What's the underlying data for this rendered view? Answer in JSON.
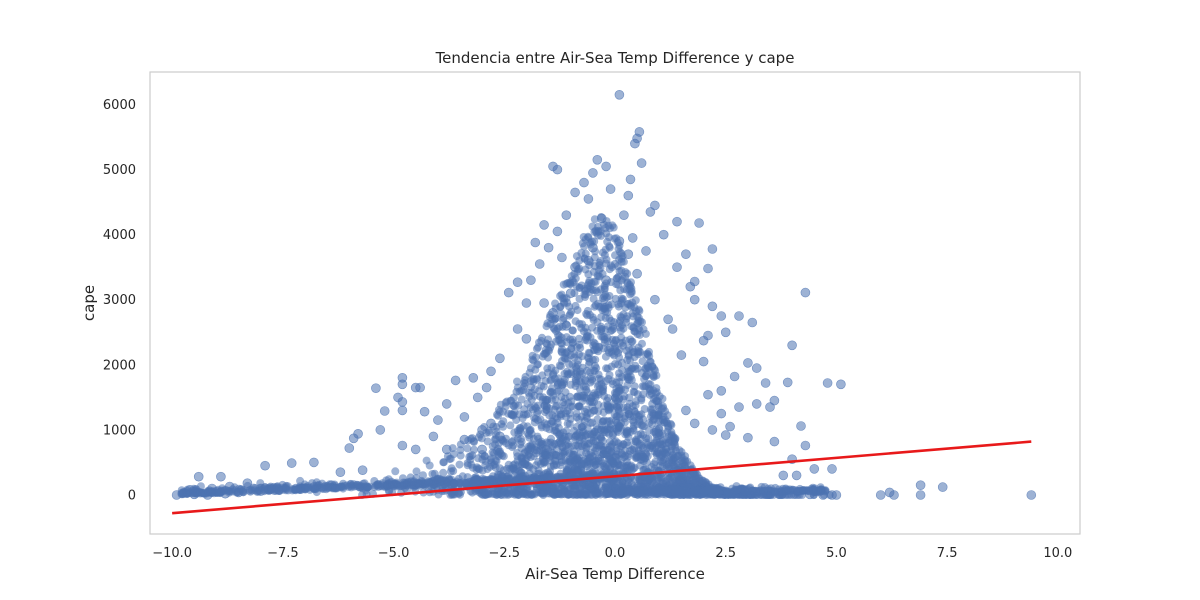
{
  "chart_data": {
    "type": "scatter",
    "title": "Tendencia entre Air-Sea Temp Difference y cape",
    "xlabel": "Air-Sea Temp Difference",
    "ylabel": "cape",
    "xlim": [
      -10.5,
      10.5
    ],
    "ylim": [
      -600,
      6500
    ],
    "xticks": [
      -10.0,
      -7.5,
      -5.0,
      -2.5,
      0.0,
      2.5,
      5.0,
      7.5,
      10.0
    ],
    "xtick_labels": [
      "−10.0",
      "−7.5",
      "−5.0",
      "−2.5",
      "0.0",
      "2.5",
      "5.0",
      "7.5",
      "10.0"
    ],
    "yticks": [
      0,
      1000,
      2000,
      3000,
      4000,
      5000,
      6000
    ],
    "ytick_labels": [
      "0",
      "1000",
      "2000",
      "3000",
      "4000",
      "5000",
      "6000"
    ],
    "grid": false,
    "series": [
      {
        "kind": "scatter",
        "color": "#4c72b0",
        "points": [
          [
            0.1,
            6150
          ],
          [
            0.55,
            5580
          ],
          [
            0.5,
            5480
          ],
          [
            0.45,
            5400
          ],
          [
            -1.4,
            5050
          ],
          [
            -1.3,
            5000
          ],
          [
            -0.4,
            5150
          ],
          [
            -0.2,
            5050
          ],
          [
            0.6,
            5100
          ],
          [
            -0.5,
            4950
          ],
          [
            0.35,
            4850
          ],
          [
            -0.7,
            4800
          ],
          [
            -0.9,
            4650
          ],
          [
            -0.1,
            4700
          ],
          [
            0.3,
            4600
          ],
          [
            -0.6,
            4550
          ],
          [
            0.9,
            4450
          ],
          [
            0.8,
            4350
          ],
          [
            -1.1,
            4300
          ],
          [
            0.2,
            4300
          ],
          [
            1.4,
            4200
          ],
          [
            1.9,
            4180
          ],
          [
            -1.6,
            4150
          ],
          [
            -0.3,
            4250
          ],
          [
            -1.3,
            4050
          ],
          [
            1.1,
            4000
          ],
          [
            0.4,
            3950
          ],
          [
            -1.8,
            3880
          ],
          [
            2.2,
            3780
          ],
          [
            1.6,
            3700
          ],
          [
            -1.5,
            3800
          ],
          [
            -1.2,
            3650
          ],
          [
            0.7,
            3750
          ],
          [
            -1.7,
            3550
          ],
          [
            2.1,
            3480
          ],
          [
            -2.2,
            3270
          ],
          [
            1.4,
            3500
          ],
          [
            1.8,
            3280
          ],
          [
            -2.4,
            3110
          ],
          [
            4.3,
            3110
          ],
          [
            1.7,
            3200
          ],
          [
            -1.9,
            3300
          ],
          [
            1.8,
            3000
          ],
          [
            2.4,
            2750
          ],
          [
            2.8,
            2750
          ],
          [
            3.1,
            2650
          ],
          [
            -2.0,
            2950
          ],
          [
            -1.6,
            2950
          ],
          [
            2.2,
            2900
          ],
          [
            1.3,
            2550
          ],
          [
            2.1,
            2450
          ],
          [
            2.0,
            2370
          ],
          [
            2.5,
            2500
          ],
          [
            -2.2,
            2550
          ],
          [
            -2.0,
            2400
          ],
          [
            4.0,
            2300
          ],
          [
            1.5,
            2150
          ],
          [
            2.0,
            2050
          ],
          [
            3.0,
            2030
          ],
          [
            3.2,
            1950
          ],
          [
            -2.6,
            2100
          ],
          [
            -2.8,
            1900
          ],
          [
            -3.2,
            1800
          ],
          [
            2.7,
            1820
          ],
          [
            -3.6,
            1760
          ],
          [
            -4.8,
            1800
          ],
          [
            -4.8,
            1700
          ],
          [
            -4.4,
            1650
          ],
          [
            -5.4,
            1640
          ],
          [
            -4.5,
            1650
          ],
          [
            4.8,
            1720
          ],
          [
            5.1,
            1700
          ],
          [
            3.9,
            1730
          ],
          [
            2.4,
            1600
          ],
          [
            3.4,
            1720
          ],
          [
            2.1,
            1540
          ],
          [
            3.6,
            1450
          ],
          [
            -2.9,
            1650
          ],
          [
            -3.1,
            1500
          ],
          [
            -3.8,
            1400
          ],
          [
            -4.9,
            1500
          ],
          [
            -4.8,
            1430
          ],
          [
            -4.3,
            1280
          ],
          [
            -4.8,
            1300
          ],
          [
            -5.2,
            1290
          ],
          [
            2.8,
            1350
          ],
          [
            3.2,
            1400
          ],
          [
            3.5,
            1350
          ],
          [
            2.4,
            1250
          ],
          [
            -3.4,
            1200
          ],
          [
            -4.0,
            1150
          ],
          [
            4.2,
            1060
          ],
          [
            -5.3,
            1000
          ],
          [
            -5.8,
            940
          ],
          [
            -5.9,
            870
          ],
          [
            -4.1,
            900
          ],
          [
            -6.0,
            720
          ],
          [
            -3.0,
            1000
          ],
          [
            3.6,
            820
          ],
          [
            4.3,
            760
          ],
          [
            2.5,
            920
          ],
          [
            3.0,
            880
          ],
          [
            -4.8,
            760
          ],
          [
            -3.8,
            700
          ],
          [
            -4.5,
            700
          ],
          [
            4.0,
            550
          ],
          [
            4.1,
            300
          ],
          [
            4.5,
            400
          ],
          [
            4.9,
            400
          ],
          [
            3.8,
            300
          ],
          [
            -6.8,
            500
          ],
          [
            -7.3,
            490
          ],
          [
            -7.9,
            450
          ],
          [
            -6.2,
            350
          ],
          [
            -5.7,
            380
          ],
          [
            -9.4,
            280
          ],
          [
            -8.9,
            280
          ],
          [
            -8.3,
            180
          ],
          [
            -8.7,
            130
          ],
          [
            -9.1,
            100
          ],
          [
            -9.6,
            80
          ],
          [
            -9.0,
            50
          ],
          [
            -9.9,
            0
          ],
          [
            -9.5,
            10
          ],
          [
            -9.2,
            0
          ],
          [
            -8.8,
            20
          ],
          [
            -8.5,
            40
          ],
          [
            -8.0,
            60
          ],
          [
            -7.6,
            80
          ],
          [
            -7.2,
            100
          ],
          [
            -6.8,
            120
          ],
          [
            -6.4,
            150
          ],
          [
            4.7,
            0
          ],
          [
            4.9,
            0
          ],
          [
            5.0,
            0
          ],
          [
            4.4,
            10
          ],
          [
            6.0,
            0
          ],
          [
            6.3,
            0
          ],
          [
            6.2,
            40
          ],
          [
            6.9,
            150
          ],
          [
            6.9,
            0
          ],
          [
            7.4,
            120
          ],
          [
            9.4,
            0
          ],
          [
            -3.0,
            700
          ],
          [
            -2.6,
            900
          ],
          [
            1.8,
            1100
          ],
          [
            2.2,
            1000
          ],
          [
            1.6,
            1300
          ],
          [
            2.6,
            1050
          ],
          [
            -3.4,
            850
          ],
          [
            -2.8,
            1100
          ],
          [
            -0.5,
            3800
          ],
          [
            0.1,
            3900
          ],
          [
            -0.9,
            3500
          ],
          [
            0.5,
            3400
          ],
          [
            -0.2,
            3300
          ],
          [
            -1.0,
            3100
          ],
          [
            0.9,
            3000
          ],
          [
            -1.4,
            2800
          ],
          [
            1.2,
            2700
          ],
          [
            -0.6,
            3600
          ],
          [
            0.3,
            3700
          ],
          [
            -1.1,
            2600
          ]
        ]
      },
      {
        "kind": "line",
        "name": "",
        "color": "#e8191a",
        "points": [
          [
            -10.0,
            -280
          ],
          [
            9.4,
            820
          ]
        ]
      }
    ]
  }
}
